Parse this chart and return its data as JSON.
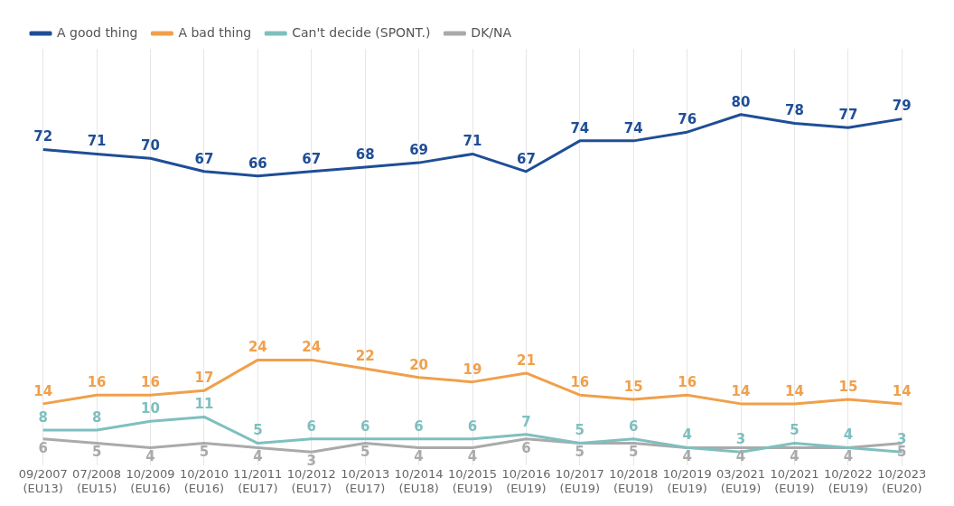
{
  "chart_data": {
    "type": "line",
    "categories": [
      "09/2007 (EU13)",
      "07/2008 (EU15)",
      "10/2009 (EU16)",
      "10/2010 (EU16)",
      "11/2011 (EU17)",
      "10/2012 (EU17)",
      "10/2013 (EU17)",
      "10/2014 (EU18)",
      "10/2015 (EU19)",
      "10/2016 (EU19)",
      "10/2017 (EU19)",
      "10/2018 (EU19)",
      "10/2019 (EU19)",
      "03/2021 (EU19)",
      "10/2021 (EU19)",
      "10/2022 (EU19)",
      "10/2023 (EU20)"
    ],
    "series": [
      {
        "name": "A good thing",
        "color": "#1f4e96",
        "values": [
          72,
          71,
          70,
          67,
          66,
          67,
          68,
          69,
          71,
          67,
          74,
          74,
          76,
          80,
          78,
          77,
          79
        ]
      },
      {
        "name": "A bad thing",
        "color": "#f0a04b",
        "values": [
          14,
          16,
          16,
          17,
          24,
          24,
          22,
          20,
          19,
          21,
          16,
          15,
          16,
          14,
          14,
          15,
          14
        ]
      },
      {
        "name": "Can't decide (SPONT.)",
        "color": "#7fbfbf",
        "values": [
          8,
          8,
          10,
          11,
          5,
          6,
          6,
          6,
          6,
          7,
          5,
          6,
          4,
          3,
          5,
          4,
          3
        ]
      },
      {
        "name": "DK/NA",
        "color": "#aaaaaa",
        "values": [
          6,
          5,
          4,
          5,
          4,
          3,
          5,
          4,
          4,
          6,
          5,
          5,
          4,
          4,
          4,
          4,
          5
        ]
      }
    ],
    "ylim": [
      0,
      95
    ],
    "tick_labels": "x",
    "grid": "x",
    "legend": "top",
    "marker": "none",
    "line_style": "solid",
    "data_labels": true
  }
}
